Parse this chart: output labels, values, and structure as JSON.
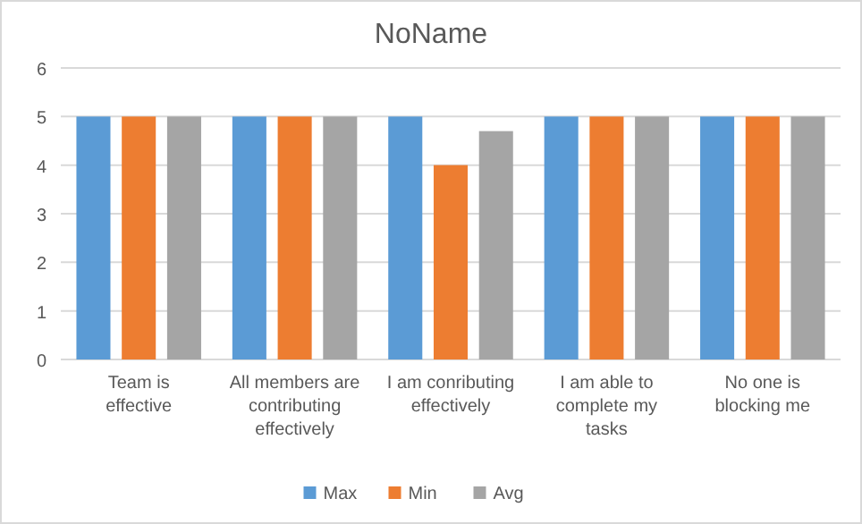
{
  "chart_data": {
    "type": "bar",
    "title": "NoName",
    "categories": [
      "Team is effective",
      "All members are contributing effectively",
      "I am conributing effectively",
      "I am able to complete my tasks",
      "No one is blocking me"
    ],
    "series": [
      {
        "name": "Max",
        "color": "#5b9bd5",
        "values": [
          5,
          5,
          5,
          5,
          5
        ]
      },
      {
        "name": "Min",
        "color": "#ed7d31",
        "values": [
          5,
          5,
          4,
          5,
          5
        ]
      },
      {
        "name": "Avg",
        "color": "#a5a5a5",
        "values": [
          5,
          5,
          4.7,
          5,
          5
        ]
      }
    ],
    "ylim": [
      0,
      6
    ],
    "yticks": [
      0,
      1,
      2,
      3,
      4,
      5,
      6
    ],
    "grid": "y",
    "legend": "bottom"
  }
}
